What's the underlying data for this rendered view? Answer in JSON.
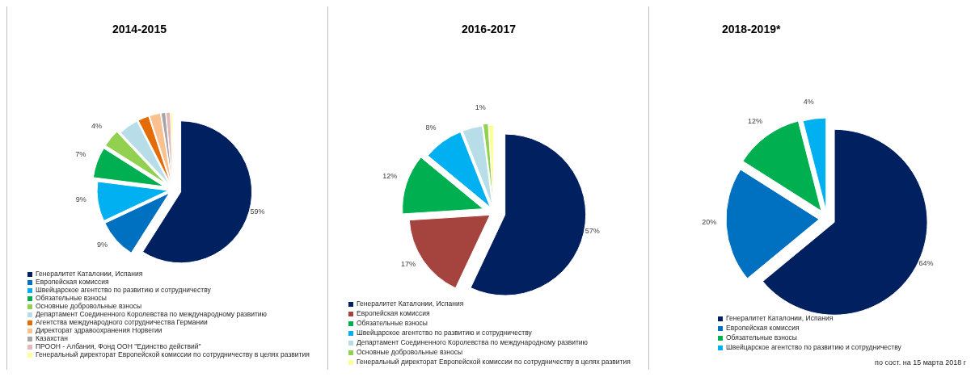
{
  "chart_data": [
    {
      "type": "pie",
      "title": "2014-2015",
      "categories": [
        "Генералитет Каталонии, Испания",
        "Европейская комиссия",
        "Швейцарское агентство по развитию и сотрудничеству",
        "Обязательные взносы",
        "Основные добровольные взносы",
        "Департамент Соединенного Королевства по международному развитию",
        "Агентства международного сотрудничества Германии",
        "Директорат здравоохранения Норвегии",
        "Казахстан",
        "ПРООН - Албания, Фонд ООН \"Единство действий\"",
        "Генеральный директорат Европейской комиссии по сотрудничеству в целях развития"
      ],
      "values": [
        59,
        9,
        9,
        7,
        4,
        4.5,
        2.5,
        2.5,
        1,
        1,
        0.5
      ],
      "colors": [
        "#002060",
        "#0070c0",
        "#00b0f0",
        "#00b050",
        "#92d050",
        "#b7dee8",
        "#e36c09",
        "#fac090",
        "#a6a6a6",
        "#e6b9b8",
        "#ffff99"
      ],
      "value_labels": [
        "59%",
        "9%",
        "9%",
        "7%",
        "4%",
        null,
        null,
        null,
        null,
        null,
        null
      ],
      "legend": "bottom"
    },
    {
      "type": "pie",
      "title": "2016-2017",
      "categories": [
        "Генералитет Каталонии, Испания",
        "Европейская комиссия",
        "Обязательные взносы",
        "Швейцарское агентство по развитию и сотрудничеству",
        "Департамент Соединенного Королевства по международному развитию",
        "Основные добровольные взносы",
        "Генеральный директорат Европейской комиссии по сотрудничеству в целях развития"
      ],
      "values": [
        57,
        17,
        12,
        8,
        4,
        1,
        1
      ],
      "colors": [
        "#002060",
        "#a5433f",
        "#00b050",
        "#00b0f0",
        "#b7dee8",
        "#92d050",
        "#ffff99"
      ],
      "value_labels": [
        "57%",
        "17%",
        "12%",
        "8%",
        null,
        "1%",
        null
      ],
      "legend": "bottom"
    },
    {
      "type": "pie",
      "title": "2018-2019*",
      "categories": [
        "Генералитет Каталонии, Испания",
        "Европейская комиссия",
        "Обязательные взносы",
        "Швейцарское агентство по развитию и сотрудничеству"
      ],
      "values": [
        64,
        20,
        12,
        4
      ],
      "colors": [
        "#002060",
        "#0070c0",
        "#00b050",
        "#00b0f0"
      ],
      "value_labels": [
        "64%",
        "20%",
        "12%",
        "4%"
      ],
      "legend": "bottom",
      "annotations": [
        "по сост. на 15 марта 2018 г"
      ]
    }
  ]
}
